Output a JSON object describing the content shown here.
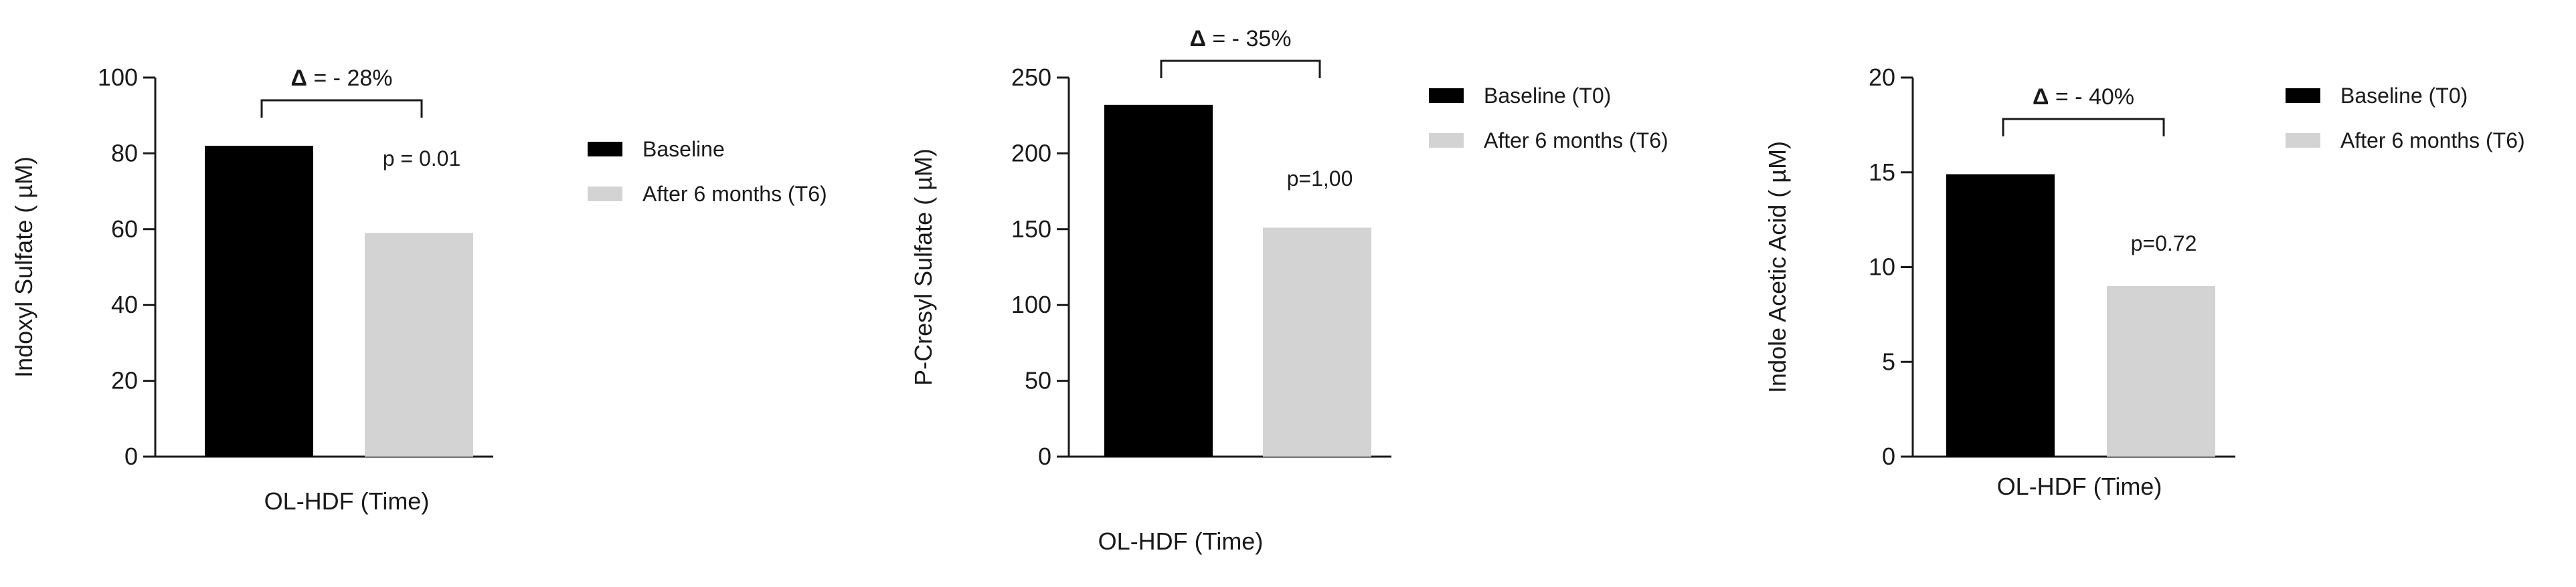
{
  "chart_data": [
    {
      "type": "bar",
      "categories": [
        "Baseline",
        "After 6 months (T6)"
      ],
      "values": [
        82,
        59
      ],
      "colors": [
        "#000000",
        "#d3d3d3"
      ],
      "xlabel": "OL-HDF (Time)",
      "ylabel": "Indoxyl Sulfate ( µM)",
      "ylim": [
        0,
        100
      ],
      "yticks": [
        0,
        20,
        40,
        60,
        80,
        100
      ],
      "legend": {
        "position": "right",
        "entries": [
          "Baseline",
          "After 6 months (T6)"
        ]
      },
      "bracket": {
        "symbol": "Δ",
        "text": "= - 28%"
      },
      "pvalue": "p = 0.01",
      "grid": false
    },
    {
      "type": "bar",
      "categories": [
        "Baseline (T0)",
        "After 6 months (T6)"
      ],
      "values": [
        232,
        151
      ],
      "colors": [
        "#000000",
        "#d3d3d3"
      ],
      "xlabel": "OL-HDF (Time)",
      "ylabel": "P-Cresyl Sulfate ( µM)",
      "ylim": [
        0,
        250
      ],
      "yticks": [
        0,
        50,
        100,
        150,
        200,
        250
      ],
      "legend": {
        "position": "right",
        "entries": [
          "Baseline (T0)",
          "After 6 months (T6)"
        ]
      },
      "bracket": {
        "symbol": "Δ",
        "text": "= - 35%"
      },
      "pvalue": "p=1,00",
      "grid": false
    },
    {
      "type": "bar",
      "categories": [
        "Baseline (T0)",
        "After 6 months (T6)"
      ],
      "values": [
        14.9,
        9.0
      ],
      "colors": [
        "#000000",
        "#d3d3d3"
      ],
      "xlabel": "OL-HDF (Time)",
      "ylabel": "Indole Acetic Acid ( µM)",
      "ylim": [
        0,
        20
      ],
      "yticks": [
        0,
        5,
        10,
        15,
        20
      ],
      "legend": {
        "position": "right",
        "entries": [
          "Baseline (T0)",
          "After 6 months (T6)"
        ]
      },
      "bracket": {
        "symbol": "Δ",
        "text": "= - 40%"
      },
      "pvalue": "p=0.72",
      "grid": false
    }
  ]
}
